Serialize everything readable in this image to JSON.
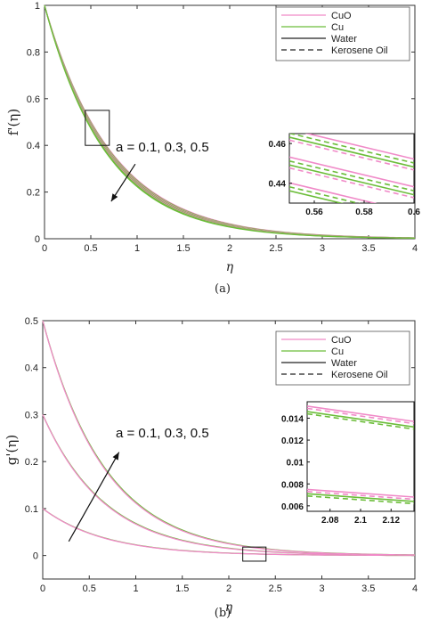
{
  "colors": {
    "cuo": "#f08ac8",
    "cu": "#6cbd3a",
    "water": "#222222",
    "kerosene": "#222222",
    "frame": "#333333",
    "arrow": "#111111"
  },
  "chart_data": [
    {
      "type": "line",
      "caption": "(a)",
      "xlabel": "η",
      "ylabel": "f'(η)",
      "xlim": [
        0,
        4
      ],
      "ylim": [
        0,
        1
      ],
      "xticks": [
        0,
        0.5,
        1,
        1.5,
        2,
        2.5,
        3,
        3.5,
        4
      ],
      "yticks": [
        0,
        0.2,
        0.4,
        0.6,
        0.8,
        1
      ],
      "xtick_labels": [
        "0",
        "0.5",
        "1",
        "1.5",
        "2",
        "2.5",
        "3",
        "3.5",
        "4"
      ],
      "ytick_labels": [
        "0",
        "0.2",
        "0.4",
        "0.6",
        "0.8",
        "1"
      ],
      "legend": [
        "CuO",
        "Cu",
        "Water",
        "Kerosene Oil"
      ],
      "legend_placement": "top-right",
      "annotation": "a = 0.1, 0.3, 0.5",
      "annotation_arrow": {
        "from": [
          0.98,
          0.32
        ],
        "to": [
          0.72,
          0.16
        ]
      },
      "zoom_box": {
        "x": [
          0.44,
          0.7
        ],
        "y": [
          0.4,
          0.55
        ]
      },
      "curves": {
        "form": "y = exp(-k * x)",
        "k": [
          1.375,
          1.39,
          1.405,
          1.42,
          1.435,
          1.45,
          1.465,
          1.48,
          1.5
        ],
        "colors": [
          "cuo",
          "cu",
          "cuo",
          "cu",
          "cuo",
          "cu",
          "cuo",
          "cu",
          "cu"
        ],
        "x_range": [
          0,
          4
        ]
      },
      "inset": {
        "xlim": [
          0.55,
          0.6
        ],
        "ylim": [
          0.43,
          0.465
        ],
        "xticks": [
          0.56,
          0.58,
          0.6
        ],
        "yticks": [
          0.44,
          0.46
        ],
        "xtick_labels": [
          "0.56",
          "0.58",
          "0.6"
        ],
        "ytick_labels": [
          "0.44",
          "0.46"
        ],
        "lines": [
          {
            "color": "cuo",
            "dashed": false,
            "y0": 0.4672,
            "y1": 0.4522
          },
          {
            "color": "cu",
            "dashed": true,
            "y0": 0.4652,
            "y1": 0.4502
          },
          {
            "color": "cu",
            "dashed": false,
            "y0": 0.4632,
            "y1": 0.4482
          },
          {
            "color": "cuo",
            "dashed": true,
            "y0": 0.4617,
            "y1": 0.4467
          },
          {
            "color": "cuo",
            "dashed": false,
            "y0": 0.4532,
            "y1": 0.4382
          },
          {
            "color": "cu",
            "dashed": true,
            "y0": 0.4512,
            "y1": 0.4362
          },
          {
            "color": "cu",
            "dashed": false,
            "y0": 0.4492,
            "y1": 0.4342
          },
          {
            "color": "cuo",
            "dashed": true,
            "y0": 0.4477,
            "y1": 0.4327
          },
          {
            "color": "cuo",
            "dashed": false,
            "y0": 0.4402,
            "y1": 0.4252
          },
          {
            "color": "cu",
            "dashed": true,
            "y0": 0.4382,
            "y1": 0.4232
          },
          {
            "color": "cu",
            "dashed": false,
            "y0": 0.4362,
            "y1": 0.4212
          }
        ]
      }
    },
    {
      "type": "line",
      "caption": "(b)",
      "xlabel": "η",
      "ylabel": "g'(η)",
      "xlim": [
        0,
        4
      ],
      "ylim": [
        -0.05,
        0.5
      ],
      "xticks": [
        0,
        0.5,
        1,
        1.5,
        2,
        2.5,
        3,
        3.5,
        4
      ],
      "yticks": [
        0,
        0.1,
        0.2,
        0.3,
        0.4,
        0.5
      ],
      "xtick_labels": [
        "0",
        "0.5",
        "1",
        "1.5",
        "2",
        "2.5",
        "3",
        "3.5",
        "4"
      ],
      "ytick_labels": [
        "0",
        "0.1",
        "0.2",
        "0.3",
        "0.4",
        "0.5"
      ],
      "legend": [
        "CuO",
        "Cu",
        "Water",
        "Kerosene Oil"
      ],
      "legend_placement": "top-right",
      "annotation": "a = 0.1, 0.3, 0.5",
      "annotation_arrow": {
        "from": [
          0.28,
          0.03
        ],
        "to": [
          0.82,
          0.22
        ]
      },
      "zoom_box": {
        "x": [
          2.15,
          2.4
        ],
        "y": [
          -0.012,
          0.018
        ]
      },
      "curves": {
        "form": "y = a * exp(-k * x)",
        "sets": [
          {
            "a": 0.1,
            "k": [
              1.48,
              1.5
            ]
          },
          {
            "a": 0.3,
            "k": [
              1.48,
              1.5
            ]
          },
          {
            "a": 0.5,
            "k": [
              1.48,
              1.5
            ]
          }
        ],
        "colors": [
          "cu",
          "cuo"
        ],
        "x_range": [
          0,
          4
        ]
      },
      "inset": {
        "xlim": [
          2.065,
          2.135
        ],
        "ylim": [
          0.0055,
          0.0155
        ],
        "xticks": [
          2.08,
          2.1,
          2.12
        ],
        "yticks": [
          0.006,
          0.008,
          0.01,
          0.012,
          0.014
        ],
        "xtick_labels": [
          "2.08",
          "2.1",
          "2.12"
        ],
        "ytick_labels": [
          "0.006",
          "0.008",
          "0.01",
          "0.012",
          "0.014"
        ],
        "lines": [
          {
            "color": "cuo",
            "dashed": false,
            "y0": 0.0151,
            "y1": 0.0137
          },
          {
            "color": "cuo",
            "dashed": true,
            "y0": 0.0149,
            "y1": 0.0135
          },
          {
            "color": "cu",
            "dashed": false,
            "y0": 0.0146,
            "y1": 0.0132
          },
          {
            "color": "cu",
            "dashed": true,
            "y0": 0.0144,
            "y1": 0.013
          },
          {
            "color": "cuo",
            "dashed": false,
            "y0": 0.0075,
            "y1": 0.0068
          },
          {
            "color": "cuo",
            "dashed": true,
            "y0": 0.0073,
            "y1": 0.0066
          },
          {
            "color": "cu",
            "dashed": false,
            "y0": 0.0071,
            "y1": 0.0064
          },
          {
            "color": "cu",
            "dashed": true,
            "y0": 0.0069,
            "y1": 0.0062
          }
        ]
      }
    }
  ]
}
